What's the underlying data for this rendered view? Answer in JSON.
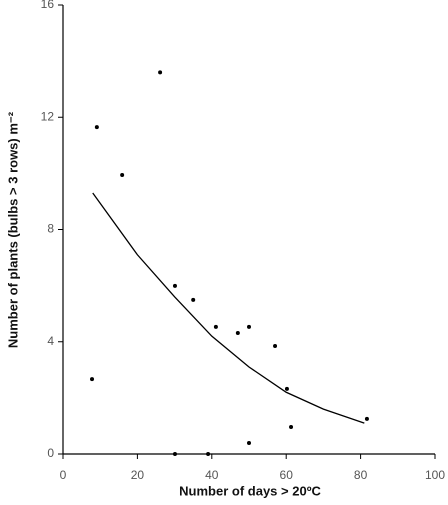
{
  "chart_data": {
    "type": "scatter",
    "xlabel": "Number of days > 20ºC",
    "ylabel": "Number of plants (bulbs > 3 rows) m⁻²",
    "xlim": [
      0,
      100
    ],
    "xticks": [
      0,
      20,
      40,
      60,
      80,
      100
    ],
    "ylim": [
      0,
      16
    ],
    "yticks": [
      0,
      4,
      8,
      12,
      16
    ],
    "series": [
      {
        "mode": "markers",
        "color": "#000000",
        "x": [
          7.8,
          9.1,
          15.9,
          26.1,
          30.1,
          30.1,
          35,
          39,
          41.1,
          47,
          50,
          50,
          57,
          60.2,
          61.3,
          81.7
        ],
        "values": [
          2.67,
          11.65,
          9.94,
          13.6,
          5.99,
          0,
          5.49,
          0,
          4.53,
          4.31,
          4.53,
          0.39,
          3.85,
          2.32,
          0.96,
          1.25
        ]
      },
      {
        "mode": "line",
        "color": "#000000",
        "x": [
          8,
          20,
          30,
          40,
          50,
          60,
          70,
          81
        ],
        "values": [
          9.3,
          7.1,
          5.6,
          4.2,
          3.1,
          2.2,
          1.6,
          1.1
        ]
      }
    ]
  }
}
